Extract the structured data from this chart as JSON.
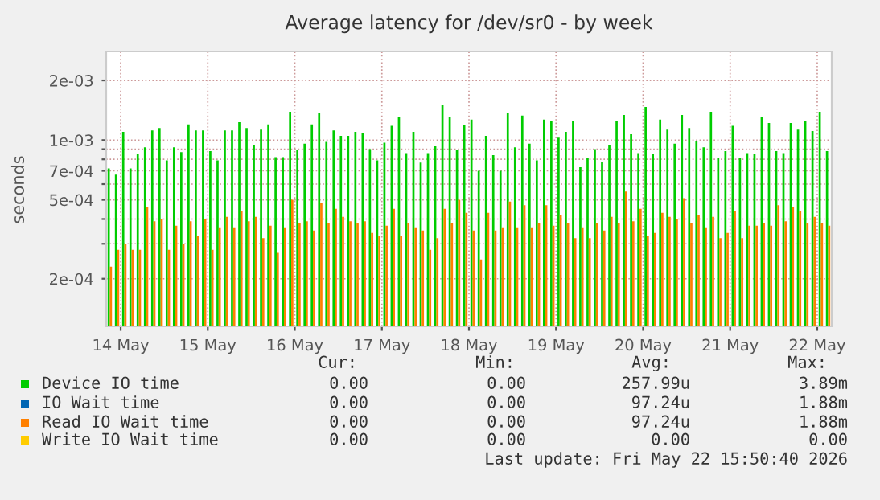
{
  "chart_data": {
    "type": "bar",
    "title": "Average latency for /dev/sr0 - by week",
    "ylabel": "seconds",
    "x": [
      "2026-05-13T21:00",
      "2026-05-13T23:00",
      "2026-05-14T01:00",
      "2026-05-14T03:00",
      "2026-05-14T05:00",
      "2026-05-14T07:00",
      "2026-05-14T09:00",
      "2026-05-14T11:00",
      "2026-05-14T13:00",
      "2026-05-14T15:00",
      "2026-05-14T17:00",
      "2026-05-14T19:00",
      "2026-05-14T21:00",
      "2026-05-14T23:00",
      "2026-05-15T01:00",
      "2026-05-15T03:00",
      "2026-05-15T05:00",
      "2026-05-15T07:00",
      "2026-05-15T09:00",
      "2026-05-15T11:00",
      "2026-05-15T13:00",
      "2026-05-15T15:00",
      "2026-05-15T17:00",
      "2026-05-15T19:00",
      "2026-05-15T21:00",
      "2026-05-15T23:00",
      "2026-05-16T01:00",
      "2026-05-16T03:00",
      "2026-05-16T05:00",
      "2026-05-16T07:00",
      "2026-05-16T09:00",
      "2026-05-16T11:00",
      "2026-05-16T13:00",
      "2026-05-16T15:00",
      "2026-05-16T17:00",
      "2026-05-16T19:00",
      "2026-05-16T21:00",
      "2026-05-16T23:00",
      "2026-05-17T01:00",
      "2026-05-17T03:00",
      "2026-05-17T05:00",
      "2026-05-17T07:00",
      "2026-05-17T09:00",
      "2026-05-17T11:00",
      "2026-05-17T13:00",
      "2026-05-17T15:00",
      "2026-05-17T17:00",
      "2026-05-17T19:00",
      "2026-05-17T21:00",
      "2026-05-17T23:00",
      "2026-05-18T01:00",
      "2026-05-18T03:00",
      "2026-05-18T05:00",
      "2026-05-18T07:00",
      "2026-05-18T09:00",
      "2026-05-18T11:00",
      "2026-05-18T13:00",
      "2026-05-18T15:00",
      "2026-05-18T17:00",
      "2026-05-18T19:00",
      "2026-05-18T21:00",
      "2026-05-18T23:00",
      "2026-05-19T01:00",
      "2026-05-19T03:00",
      "2026-05-19T05:00",
      "2026-05-19T07:00",
      "2026-05-19T09:00",
      "2026-05-19T11:00",
      "2026-05-19T13:00",
      "2026-05-19T15:00",
      "2026-05-19T17:00",
      "2026-05-19T19:00",
      "2026-05-19T21:00",
      "2026-05-19T23:00",
      "2026-05-20T01:00",
      "2026-05-20T03:00",
      "2026-05-20T05:00",
      "2026-05-20T07:00",
      "2026-05-20T09:00",
      "2026-05-20T11:00",
      "2026-05-20T13:00",
      "2026-05-20T15:00",
      "2026-05-20T17:00",
      "2026-05-20T19:00",
      "2026-05-20T21:00",
      "2026-05-20T23:00",
      "2026-05-21T01:00",
      "2026-05-21T03:00",
      "2026-05-21T05:00",
      "2026-05-21T07:00",
      "2026-05-21T09:00",
      "2026-05-21T11:00",
      "2026-05-21T13:00",
      "2026-05-21T15:00",
      "2026-05-21T17:00",
      "2026-05-21T19:00",
      "2026-05-21T21:00",
      "2026-05-21T23:00",
      "2026-05-22T01:00",
      "2026-05-22T03:00"
    ],
    "series": [
      {
        "name": "Device IO time",
        "color": "#00cc00",
        "values": [
          0.00072,
          0.00067,
          0.0011,
          0.00072,
          0.00085,
          0.00092,
          0.00112,
          0.00115,
          0.00079,
          0.00092,
          0.00087,
          0.0012,
          0.00112,
          0.00112,
          0.00088,
          0.00079,
          0.00112,
          0.00112,
          0.00123,
          0.00115,
          0.00094,
          0.00113,
          0.0012,
          0.00082,
          0.00082,
          0.00139,
          0.00089,
          0.00096,
          0.0012,
          0.00137,
          0.00098,
          0.00112,
          0.00105,
          0.00105,
          0.0011,
          0.00109,
          0.0009,
          0.00079,
          0.00097,
          0.00118,
          0.00131,
          0.00086,
          0.0011,
          0.00077,
          0.00086,
          0.00093,
          0.0015,
          0.00131,
          0.00089,
          0.00119,
          0.00127,
          0.0007,
          0.00105,
          0.00084,
          0.0007,
          0.00137,
          0.00092,
          0.00133,
          0.00096,
          0.00079,
          0.00127,
          0.00125,
          0.00103,
          0.0011,
          0.00125,
          0.00073,
          0.00081,
          0.0009,
          0.00078,
          0.00094,
          0.00125,
          0.00134,
          0.00107,
          0.00086,
          0.00147,
          0.00085,
          0.00127,
          0.00113,
          0.00096,
          0.00134,
          0.00115,
          0.00099,
          0.00092,
          0.00139,
          0.00081,
          0.00088,
          0.00118,
          0.00081,
          0.00086,
          0.00085,
          0.00131,
          0.00122,
          0.00088,
          0.00086,
          0.00122,
          0.00113,
          0.00125,
          0.00111,
          0.00139,
          0.00088
        ]
      },
      {
        "name": "IO Wait time",
        "color": "#0066b3",
        "values": [
          null,
          null,
          null,
          null,
          null,
          null,
          null,
          null,
          null,
          null,
          null,
          null,
          null,
          null,
          null,
          null,
          null,
          null,
          null,
          null,
          null,
          null,
          null,
          null,
          null,
          null,
          null,
          null,
          null,
          null,
          null,
          null,
          null,
          null,
          null,
          null,
          null,
          null,
          null,
          null,
          null,
          null,
          null,
          null,
          null,
          null,
          null,
          null,
          null,
          null,
          null,
          null,
          null,
          null,
          null,
          null,
          null,
          null,
          null,
          null,
          null,
          null,
          null,
          null,
          null,
          null,
          null,
          null,
          null,
          null,
          null,
          null,
          null,
          null,
          null,
          null,
          null,
          null,
          null,
          null,
          null,
          null,
          null,
          null,
          null,
          null,
          null,
          null,
          null,
          null,
          null,
          null,
          null,
          null,
          null,
          null,
          null,
          null,
          null,
          null
        ]
      },
      {
        "name": "Read IO Wait time",
        "color": "#ff8000",
        "values": [
          0.00023,
          0.00028,
          0.0003,
          0.00028,
          0.00028,
          0.00046,
          0.00039,
          0.0004,
          0.00028,
          0.00037,
          0.0003,
          0.00039,
          0.00033,
          0.0004,
          0.00028,
          0.00036,
          0.00041,
          0.00036,
          0.00044,
          0.00039,
          0.00041,
          0.00032,
          0.00037,
          0.00027,
          0.00036,
          0.0005,
          0.00038,
          0.00039,
          0.00035,
          0.00048,
          0.00038,
          0.00045,
          0.00041,
          0.00039,
          0.00038,
          0.00039,
          0.00034,
          0.00033,
          0.00037,
          0.00045,
          0.00033,
          0.00038,
          0.00036,
          0.00035,
          0.00028,
          0.00032,
          0.00045,
          0.00038,
          0.0005,
          0.00043,
          0.00035,
          0.00025,
          0.00043,
          0.00035,
          0.00036,
          0.00049,
          0.00036,
          0.00047,
          0.00036,
          0.00038,
          0.00047,
          0.00037,
          0.00042,
          0.00038,
          0.00032,
          0.00036,
          0.00032,
          0.00038,
          0.00035,
          0.00041,
          0.00038,
          0.00055,
          0.00039,
          0.00045,
          0.00033,
          0.00034,
          0.00043,
          0.00041,
          0.0004,
          0.00051,
          0.00038,
          0.00042,
          0.00036,
          0.00041,
          0.00032,
          0.00034,
          0.00044,
          0.00032,
          0.00037,
          0.00037,
          0.00038,
          0.00037,
          0.00047,
          0.00039,
          0.00046,
          0.00044,
          0.00038,
          0.00041,
          0.00038,
          0.00037
        ]
      },
      {
        "name": "Write IO Wait time",
        "color": "#ffcc00",
        "values": [
          null,
          null,
          null,
          null,
          null,
          null,
          null,
          null,
          null,
          null,
          null,
          null,
          null,
          null,
          null,
          null,
          null,
          null,
          null,
          null,
          null,
          null,
          null,
          null,
          null,
          null,
          null,
          null,
          null,
          null,
          null,
          null,
          null,
          null,
          null,
          null,
          null,
          null,
          null,
          null,
          null,
          null,
          null,
          null,
          null,
          null,
          null,
          null,
          null,
          null,
          null,
          null,
          null,
          null,
          null,
          null,
          null,
          null,
          null,
          null,
          null,
          null,
          null,
          null,
          null,
          null,
          null,
          null,
          null,
          null,
          null,
          null,
          null,
          null,
          null,
          null,
          null,
          null,
          null,
          null,
          null,
          null,
          null,
          null,
          null,
          null,
          null,
          null,
          null,
          null,
          null,
          null,
          null,
          null,
          null,
          null,
          null,
          null,
          null,
          null
        ]
      }
    ],
    "log": "y",
    "ylim": [
      0.000115,
      0.0028
    ],
    "yticks": [
      {
        "value": 0.0002,
        "label": "2e-04"
      },
      {
        "value": 0.0003,
        "label": null
      },
      {
        "value": 0.0004,
        "label": null
      },
      {
        "value": 0.0005,
        "label": "5e-04"
      },
      {
        "value": 0.0006,
        "label": null
      },
      {
        "value": 0.0007,
        "label": "7e-04"
      },
      {
        "value": 0.0008,
        "label": null
      },
      {
        "value": 0.0009,
        "label": null
      },
      {
        "value": 0.001,
        "label": "1e-03"
      },
      {
        "value": 0.002,
        "label": "2e-03"
      }
    ],
    "xlim": [
      "2026-05-13T20:00",
      "2026-05-22T04:00"
    ],
    "xticks": [
      {
        "value": "2026-05-14",
        "label": "14 May"
      },
      {
        "value": "2026-05-15",
        "label": "15 May"
      },
      {
        "value": "2026-05-16",
        "label": "16 May"
      },
      {
        "value": "2026-05-17",
        "label": "17 May"
      },
      {
        "value": "2026-05-18",
        "label": "18 May"
      },
      {
        "value": "2026-05-19",
        "label": "19 May"
      },
      {
        "value": "2026-05-20",
        "label": "20 May"
      },
      {
        "value": "2026-05-21",
        "label": "21 May"
      },
      {
        "value": "2026-05-22",
        "label": "22 May"
      }
    ],
    "grid": true,
    "legend": "bottom",
    "annotations": [
      "Cur:",
      "Min:",
      "Avg:",
      "Max:",
      "0.00",
      "0.00",
      "257.99u",
      "3.89m",
      "0.00",
      "0.00",
      "97.24u",
      "1.88m",
      "0.00",
      "0.00",
      "97.24u",
      "1.88m",
      "0.00",
      "0.00",
      "0.00",
      "0.00",
      "Last update: Fri May 22 15:50:40 2026"
    ]
  }
}
